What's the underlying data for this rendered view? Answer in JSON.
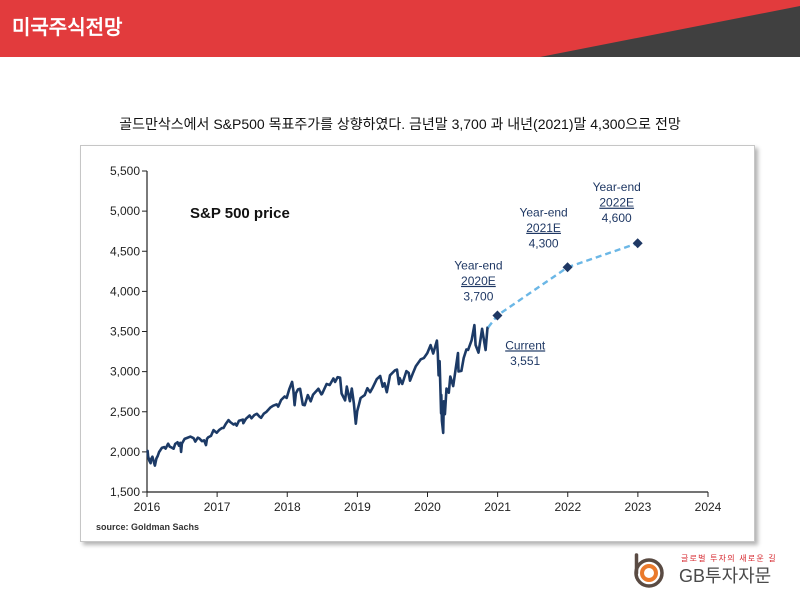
{
  "header": {
    "title": "미국주식전망",
    "color": "#e23b3d",
    "accent_color": "#404040"
  },
  "headline": "골드만삭스에서 S&P500 목표주가를 상향하였다. 금년말 3,700 과 내년(2021)말 4,300으로 전망",
  "chart_data": {
    "type": "line",
    "title": "S&P 500 price",
    "source": "source: Goldman Sachs",
    "x_axis": {
      "type": "date",
      "range": [
        "2016-01-01",
        "2024-01-01"
      ],
      "ticks": [
        {
          "date": "2016-01-01",
          "label": "2016"
        },
        {
          "date": "2017-01-01",
          "label": "2017"
        },
        {
          "date": "2018-01-01",
          "label": "2018"
        },
        {
          "date": "2019-01-01",
          "label": "2019"
        },
        {
          "date": "2020-01-01",
          "label": "2020"
        },
        {
          "date": "2021-01-01",
          "label": "2021"
        },
        {
          "date": "2022-01-01",
          "label": "2022"
        },
        {
          "date": "2023-01-01",
          "label": "2023"
        },
        {
          "date": "2024-01-01",
          "label": "2024"
        }
      ]
    },
    "y_axis": {
      "range": [
        1500,
        5500
      ],
      "ticks": [
        {
          "value": 5500,
          "label": "5,500"
        },
        {
          "value": 5000,
          "label": "5,000"
        },
        {
          "value": 4500,
          "label": "4,500"
        },
        {
          "value": 4000,
          "label": "4,000"
        },
        {
          "value": 3500,
          "label": "3,500"
        },
        {
          "value": 3000,
          "label": "3,000"
        },
        {
          "value": 2500,
          "label": "2,500"
        },
        {
          "value": 2000,
          "label": "2,000"
        },
        {
          "value": 1500,
          "label": "1,500"
        }
      ]
    },
    "grid": false,
    "legend": "none",
    "annotation_color": "#1f3864",
    "series": [
      {
        "style": "solid",
        "color": "#1c3a66",
        "points": [
          [
            "2016-01-04",
            2012
          ],
          [
            "2016-01-07",
            1943
          ],
          [
            "2016-01-13",
            1890
          ],
          [
            "2016-01-20",
            1859
          ],
          [
            "2016-01-22",
            1907
          ],
          [
            "2016-01-29",
            1940
          ],
          [
            "2016-02-05",
            1880
          ],
          [
            "2016-02-11",
            1829
          ],
          [
            "2016-02-19",
            1918
          ],
          [
            "2016-02-26",
            1948
          ],
          [
            "2016-03-04",
            1999
          ],
          [
            "2016-03-11",
            2022
          ],
          [
            "2016-03-18",
            2050
          ],
          [
            "2016-03-31",
            2060
          ],
          [
            "2016-04-07",
            2041
          ],
          [
            "2016-04-20",
            2102
          ],
          [
            "2016-04-29",
            2065
          ],
          [
            "2016-05-06",
            2057
          ],
          [
            "2016-05-19",
            2040
          ],
          [
            "2016-05-27",
            2099
          ],
          [
            "2016-06-08",
            2119
          ],
          [
            "2016-06-16",
            2077
          ],
          [
            "2016-06-23",
            2113
          ],
          [
            "2016-06-27",
            2000
          ],
          [
            "2016-07-01",
            2103
          ],
          [
            "2016-07-15",
            2162
          ],
          [
            "2016-07-29",
            2174
          ],
          [
            "2016-08-15",
            2190
          ],
          [
            "2016-08-31",
            2171
          ],
          [
            "2016-09-09",
            2128
          ],
          [
            "2016-09-22",
            2177
          ],
          [
            "2016-09-30",
            2168
          ],
          [
            "2016-10-14",
            2133
          ],
          [
            "2016-10-25",
            2143
          ],
          [
            "2016-11-04",
            2085
          ],
          [
            "2016-11-09",
            2163
          ],
          [
            "2016-11-15",
            2180
          ],
          [
            "2016-11-30",
            2199
          ],
          [
            "2016-12-13",
            2271
          ],
          [
            "2016-12-30",
            2239
          ],
          [
            "2017-01-13",
            2275
          ],
          [
            "2017-01-26",
            2296
          ],
          [
            "2017-02-03",
            2297
          ],
          [
            "2017-02-15",
            2349
          ],
          [
            "2017-03-01",
            2396
          ],
          [
            "2017-03-10",
            2372
          ],
          [
            "2017-03-27",
            2341
          ],
          [
            "2017-04-05",
            2352
          ],
          [
            "2017-04-13",
            2328
          ],
          [
            "2017-04-25",
            2389
          ],
          [
            "2017-05-15",
            2402
          ],
          [
            "2017-05-17",
            2357
          ],
          [
            "2017-05-31",
            2412
          ],
          [
            "2017-06-19",
            2453
          ],
          [
            "2017-06-29",
            2419
          ],
          [
            "2017-07-14",
            2459
          ],
          [
            "2017-07-27",
            2475
          ],
          [
            "2017-08-10",
            2438
          ],
          [
            "2017-08-18",
            2425
          ],
          [
            "2017-09-01",
            2476
          ],
          [
            "2017-09-15",
            2500
          ],
          [
            "2017-10-05",
            2552
          ],
          [
            "2017-10-20",
            2575
          ],
          [
            "2017-11-07",
            2591
          ],
          [
            "2017-11-15",
            2564
          ],
          [
            "2017-11-30",
            2647
          ],
          [
            "2017-12-18",
            2690
          ],
          [
            "2017-12-29",
            2673
          ],
          [
            "2018-01-12",
            2786
          ],
          [
            "2018-01-26",
            2872
          ],
          [
            "2018-02-02",
            2762
          ],
          [
            "2018-02-08",
            2581
          ],
          [
            "2018-02-15",
            2731
          ],
          [
            "2018-02-26",
            2779
          ],
          [
            "2018-03-09",
            2786
          ],
          [
            "2018-03-23",
            2588
          ],
          [
            "2018-04-02",
            2581
          ],
          [
            "2018-04-18",
            2708
          ],
          [
            "2018-05-03",
            2630
          ],
          [
            "2018-05-15",
            2711
          ],
          [
            "2018-06-12",
            2786
          ],
          [
            "2018-06-28",
            2716
          ],
          [
            "2018-07-02",
            2726
          ],
          [
            "2018-07-25",
            2846
          ],
          [
            "2018-08-10",
            2833
          ],
          [
            "2018-08-29",
            2914
          ],
          [
            "2018-09-07",
            2872
          ],
          [
            "2018-09-20",
            2930
          ],
          [
            "2018-10-03",
            2925
          ],
          [
            "2018-10-11",
            2728
          ],
          [
            "2018-10-29",
            2641
          ],
          [
            "2018-11-07",
            2813
          ],
          [
            "2018-11-23",
            2632
          ],
          [
            "2018-12-03",
            2790
          ],
          [
            "2018-12-14",
            2600
          ],
          [
            "2018-12-24",
            2351
          ],
          [
            "2018-12-31",
            2507
          ],
          [
            "2019-01-10",
            2596
          ],
          [
            "2019-01-18",
            2671
          ],
          [
            "2019-02-08",
            2707
          ],
          [
            "2019-02-22",
            2793
          ],
          [
            "2019-03-08",
            2743
          ],
          [
            "2019-03-22",
            2801
          ],
          [
            "2019-04-12",
            2907
          ],
          [
            "2019-04-30",
            2945
          ],
          [
            "2019-05-13",
            2812
          ],
          [
            "2019-05-22",
            2856
          ],
          [
            "2019-06-03",
            2744
          ],
          [
            "2019-06-20",
            2954
          ],
          [
            "2019-07-15",
            3014
          ],
          [
            "2019-07-26",
            3025
          ],
          [
            "2019-08-05",
            2844
          ],
          [
            "2019-08-09",
            2919
          ],
          [
            "2019-08-23",
            2847
          ],
          [
            "2019-09-13",
            3007
          ],
          [
            "2019-09-25",
            2984
          ],
          [
            "2019-10-02",
            2887
          ],
          [
            "2019-10-18",
            2986
          ],
          [
            "2019-11-01",
            3066
          ],
          [
            "2019-11-27",
            3153
          ],
          [
            "2019-12-13",
            3168
          ],
          [
            "2019-12-31",
            3231
          ],
          [
            "2020-01-17",
            3330
          ],
          [
            "2020-01-31",
            3226
          ],
          [
            "2020-02-19",
            3386
          ],
          [
            "2020-02-24",
            3226
          ],
          [
            "2020-02-28",
            2954
          ],
          [
            "2020-03-04",
            3130
          ],
          [
            "2020-03-09",
            2747
          ],
          [
            "2020-03-12",
            2481
          ],
          [
            "2020-03-13",
            2711
          ],
          [
            "2020-03-16",
            2386
          ],
          [
            "2020-03-23",
            2237
          ],
          [
            "2020-03-26",
            2630
          ],
          [
            "2020-04-01",
            2470
          ],
          [
            "2020-04-09",
            2790
          ],
          [
            "2020-04-21",
            2737
          ],
          [
            "2020-04-29",
            2939
          ],
          [
            "2020-05-14",
            2820
          ],
          [
            "2020-05-27",
            3036
          ],
          [
            "2020-06-08",
            3232
          ],
          [
            "2020-06-11",
            3002
          ],
          [
            "2020-06-26",
            3009
          ],
          [
            "2020-07-08",
            3170
          ],
          [
            "2020-07-22",
            3276
          ],
          [
            "2020-07-31",
            3271
          ],
          [
            "2020-08-18",
            3390
          ],
          [
            "2020-09-02",
            3580
          ],
          [
            "2020-09-08",
            3332
          ],
          [
            "2020-09-23",
            3237
          ],
          [
            "2020-10-12",
            3534
          ],
          [
            "2020-10-30",
            3270
          ],
          [
            "2020-11-09",
            3550
          ],
          [
            "2020-11-13",
            3551
          ]
        ]
      },
      {
        "style": "dashed",
        "color": "#6bb7e6",
        "marker": "diamond",
        "marker_color": "#1f3864",
        "points": [
          [
            "2020-11-13",
            3551
          ],
          [
            "2020-12-31",
            3700
          ],
          [
            "2021-12-31",
            4300
          ],
          [
            "2022-12-31",
            4600
          ]
        ],
        "markers": [
          false,
          true,
          true,
          true
        ]
      }
    ],
    "annotations": [
      {
        "date": "2020-12-31",
        "value": 3700,
        "lines": [
          "Year-end",
          "2020E",
          "3,700"
        ],
        "underlined_line": 1
      },
      {
        "date": "2021-12-31",
        "value": 4300,
        "lines": [
          "Year-end",
          "2021E",
          "4,300"
        ],
        "underlined_line": 1
      },
      {
        "date": "2022-12-31",
        "value": 4600,
        "lines": [
          "Year-end",
          "2022E",
          "4,600"
        ],
        "underlined_line": 1
      },
      {
        "date": "2020-11-13",
        "value": 3551,
        "lines": [
          "Current",
          "3,551"
        ],
        "underlined_line": 0
      }
    ]
  },
  "footer": {
    "logo_icon": "gb-circle-logo-icon",
    "tagline": "글로벌 투자의 새로운 길",
    "brand": "GB투자자문"
  }
}
